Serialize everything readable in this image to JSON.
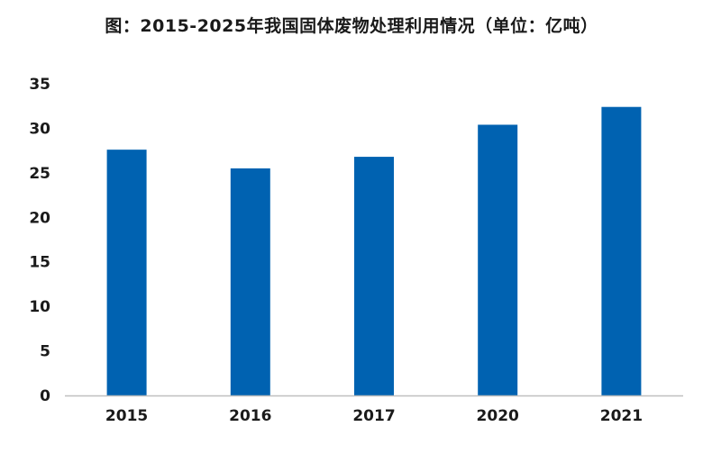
{
  "chart_data": {
    "type": "bar",
    "title": "图：2015-2025年我国固体废物处理利用情况（单位：亿吨）",
    "categories": [
      "2015",
      "2016",
      "2017",
      "2020",
      "2021"
    ],
    "values": [
      27.6,
      25.5,
      26.8,
      30.4,
      32.4
    ],
    "xlabel": "",
    "ylabel": "",
    "ylim": [
      0,
      35
    ],
    "yticks": [
      0,
      5,
      10,
      15,
      20,
      25,
      30,
      35
    ],
    "grid": false,
    "legend": "none",
    "bar_color": "#0062B1",
    "axis_color": "#bfbfbf"
  }
}
